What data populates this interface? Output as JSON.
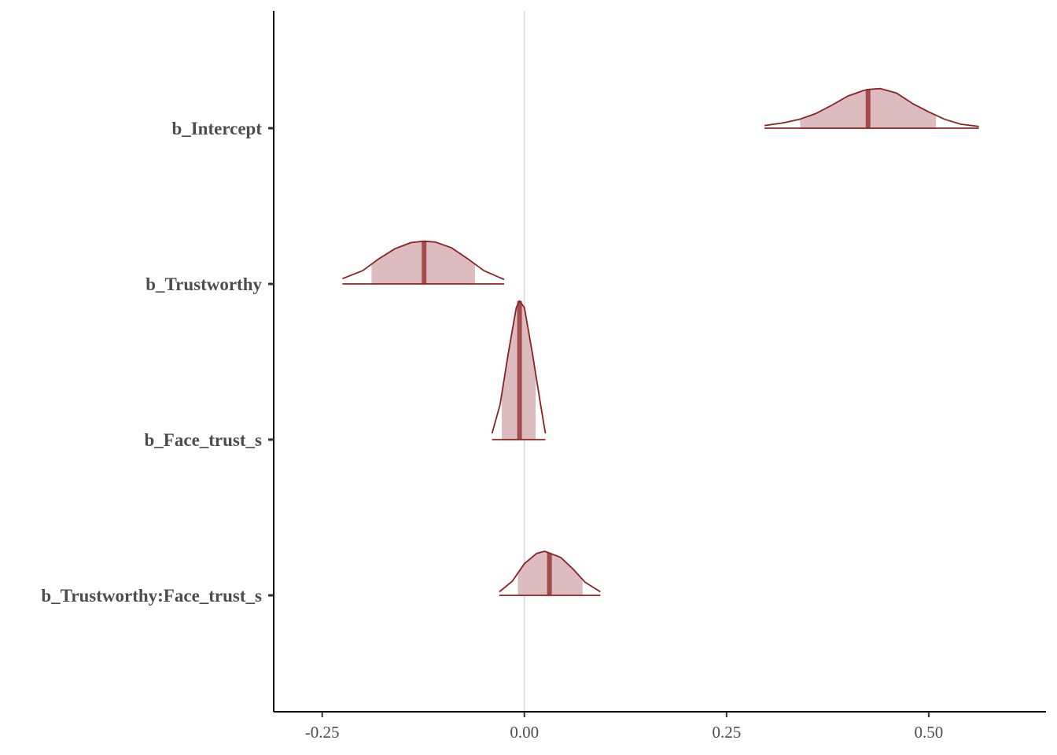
{
  "chart_data": {
    "type": "area",
    "subtype": "posterior-density-ridges",
    "title": "",
    "xlabel": "",
    "ylabel": "",
    "xlim": [
      -0.31,
      0.645
    ],
    "x_ticks": [
      -0.25,
      0.0,
      0.25,
      0.5
    ],
    "x_tick_labels": [
      "-0.25",
      "0.00",
      "0.25",
      "0.50"
    ],
    "reference_line": 0.0,
    "grid": false,
    "colors": {
      "line": "#8b2222",
      "fill": "#dcbcbf",
      "median": "#a34a4a",
      "axis": "#000000",
      "zero_line": "#e0e0e0",
      "text": "#4d4d4d"
    },
    "series": [
      {
        "name": "b_Intercept",
        "median": 0.425,
        "interval_50": [
          0.341,
          0.509
        ],
        "interval_outer": [
          0.297,
          0.562
        ],
        "density_x": [
          0.297,
          0.32,
          0.34,
          0.36,
          0.38,
          0.4,
          0.42,
          0.425,
          0.44,
          0.46,
          0.48,
          0.5,
          0.52,
          0.54,
          0.562
        ],
        "density_y": [
          0.06,
          0.12,
          0.2,
          0.33,
          0.52,
          0.73,
          0.86,
          0.88,
          0.9,
          0.8,
          0.56,
          0.37,
          0.2,
          0.09,
          0.04
        ]
      },
      {
        "name": "b_Trustworthy",
        "median": -0.124,
        "interval_50": [
          -0.189,
          -0.061
        ],
        "interval_outer": [
          -0.225,
          -0.025
        ],
        "density_x": [
          -0.225,
          -0.2,
          -0.18,
          -0.16,
          -0.14,
          -0.124,
          -0.11,
          -0.09,
          -0.07,
          -0.05,
          -0.025
        ],
        "density_y": [
          0.12,
          0.3,
          0.57,
          0.8,
          0.94,
          0.97,
          0.95,
          0.82,
          0.57,
          0.3,
          0.1
        ]
      },
      {
        "name": "b_Face_trust_s",
        "median": -0.006,
        "interval_50": [
          -0.028,
          0.014
        ],
        "interval_outer": [
          -0.04,
          0.026
        ],
        "density_x": [
          -0.04,
          -0.03,
          -0.02,
          -0.01,
          -0.006,
          0.0,
          0.01,
          0.02,
          0.026
        ],
        "density_y": [
          0.14,
          0.8,
          1.95,
          3.0,
          3.15,
          3.0,
          1.95,
          0.8,
          0.14
        ]
      },
      {
        "name": "b_Trustworthy:Face_trust_s",
        "median": 0.031,
        "interval_50": [
          -0.008,
          0.072
        ],
        "interval_outer": [
          -0.031,
          0.094
        ],
        "density_x": [
          -0.031,
          -0.015,
          0.0,
          0.015,
          0.025,
          0.031,
          0.045,
          0.06,
          0.075,
          0.094
        ],
        "density_y": [
          0.08,
          0.32,
          0.72,
          0.95,
          1.0,
          0.96,
          0.86,
          0.6,
          0.3,
          0.08
        ]
      }
    ]
  }
}
